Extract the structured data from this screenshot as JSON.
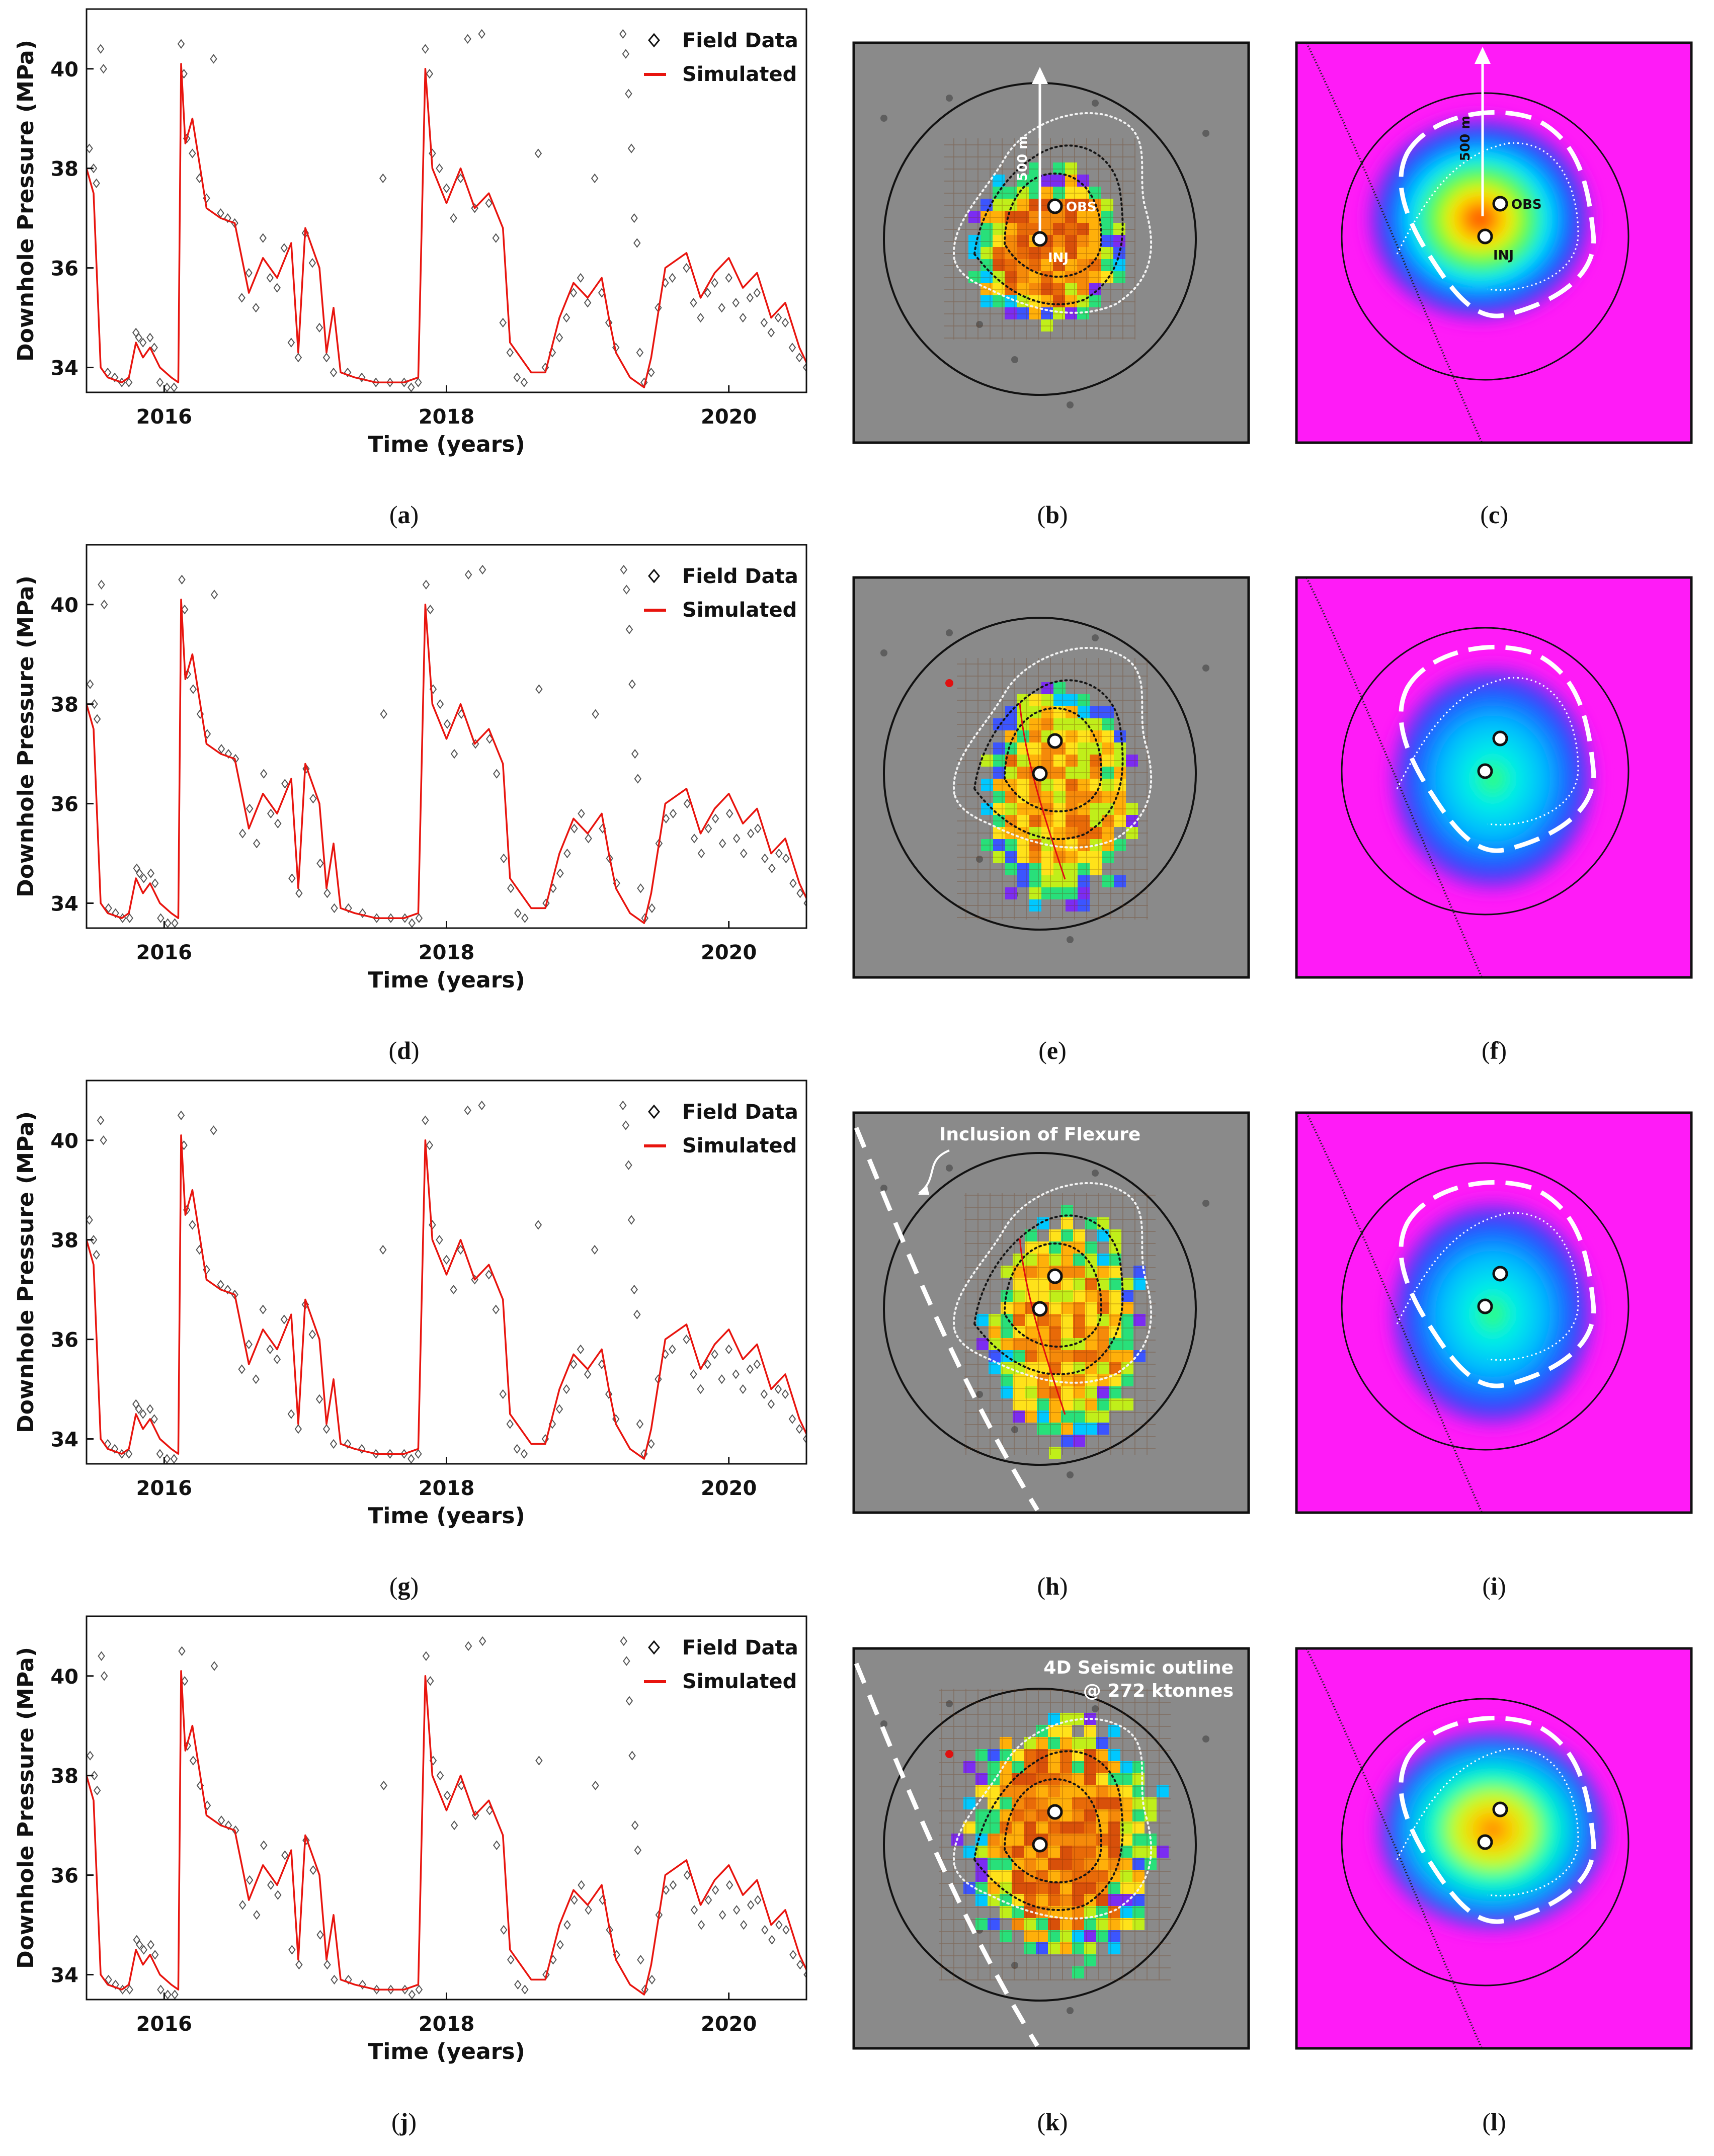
{
  "colors": {
    "sim": "#e8140e",
    "field": "#555555",
    "axis": "#111111",
    "map_bg": "#858585",
    "plume_bg": "#ff1bf7",
    "dotted_white": "#f2f2f2",
    "dotted_black": "#151515",
    "outline_dash": "#ffffff"
  },
  "legend": {
    "field": "Field Data",
    "sim": "Simulated"
  },
  "chart_data": {
    "type": "line",
    "panels": [
      "a",
      "d",
      "g",
      "j"
    ],
    "xlabel": "Time (years)",
    "ylabel": "Downhole Pressure (MPa)",
    "xlim": [
      2015.45,
      2020.55
    ],
    "ylim": [
      33.5,
      41.2
    ],
    "xticks": [
      2016,
      2018,
      2020
    ],
    "xtick_labels": [
      "2016",
      "2018",
      "2020"
    ],
    "yticks": [
      34,
      36,
      38,
      40
    ],
    "ytick_labels": [
      "34",
      "36",
      "38",
      "40"
    ],
    "series": [
      {
        "name": "Simulated",
        "style": "line",
        "points": [
          [
            2015.45,
            38.0
          ],
          [
            2015.5,
            37.5
          ],
          [
            2015.55,
            34.0
          ],
          [
            2015.6,
            33.8
          ],
          [
            2015.7,
            33.7
          ],
          [
            2015.75,
            33.8
          ],
          [
            2015.8,
            34.5
          ],
          [
            2015.85,
            34.2
          ],
          [
            2015.9,
            34.4
          ],
          [
            2015.97,
            34.0
          ],
          [
            2016.05,
            33.8
          ],
          [
            2016.1,
            33.7
          ],
          [
            2016.12,
            40.1
          ],
          [
            2016.15,
            38.5
          ],
          [
            2016.2,
            39.0
          ],
          [
            2016.3,
            37.2
          ],
          [
            2016.4,
            37.0
          ],
          [
            2016.5,
            36.9
          ],
          [
            2016.6,
            35.5
          ],
          [
            2016.7,
            36.2
          ],
          [
            2016.8,
            35.8
          ],
          [
            2016.9,
            36.5
          ],
          [
            2016.95,
            34.3
          ],
          [
            2017.0,
            36.8
          ],
          [
            2017.1,
            36.0
          ],
          [
            2017.15,
            34.3
          ],
          [
            2017.2,
            35.2
          ],
          [
            2017.25,
            33.9
          ],
          [
            2017.35,
            33.8
          ],
          [
            2017.5,
            33.7
          ],
          [
            2017.6,
            33.7
          ],
          [
            2017.7,
            33.7
          ],
          [
            2017.8,
            33.8
          ],
          [
            2017.85,
            40.0
          ],
          [
            2017.9,
            38.0
          ],
          [
            2018.0,
            37.3
          ],
          [
            2018.1,
            38.0
          ],
          [
            2018.2,
            37.2
          ],
          [
            2018.3,
            37.5
          ],
          [
            2018.4,
            36.8
          ],
          [
            2018.45,
            34.5
          ],
          [
            2018.5,
            34.3
          ],
          [
            2018.6,
            33.9
          ],
          [
            2018.7,
            33.9
          ],
          [
            2018.8,
            35.0
          ],
          [
            2018.9,
            35.7
          ],
          [
            2019.0,
            35.4
          ],
          [
            2019.1,
            35.8
          ],
          [
            2019.15,
            35.0
          ],
          [
            2019.2,
            34.3
          ],
          [
            2019.3,
            33.8
          ],
          [
            2019.4,
            33.6
          ],
          [
            2019.45,
            34.2
          ],
          [
            2019.55,
            36.0
          ],
          [
            2019.7,
            36.3
          ],
          [
            2019.8,
            35.4
          ],
          [
            2019.9,
            35.9
          ],
          [
            2020.0,
            36.2
          ],
          [
            2020.1,
            35.6
          ],
          [
            2020.2,
            35.9
          ],
          [
            2020.3,
            35.0
          ],
          [
            2020.4,
            35.3
          ],
          [
            2020.5,
            34.4
          ],
          [
            2020.55,
            34.1
          ]
        ]
      },
      {
        "name": "Field Data",
        "style": "marker",
        "points": [
          [
            2015.47,
            38.4
          ],
          [
            2015.5,
            38.0
          ],
          [
            2015.52,
            37.7
          ],
          [
            2015.55,
            40.4
          ],
          [
            2015.57,
            40.0
          ],
          [
            2015.6,
            33.9
          ],
          [
            2015.65,
            33.8
          ],
          [
            2015.7,
            33.7
          ],
          [
            2015.75,
            33.7
          ],
          [
            2015.8,
            34.7
          ],
          [
            2015.82,
            34.6
          ],
          [
            2015.85,
            34.5
          ],
          [
            2015.9,
            34.6
          ],
          [
            2015.93,
            34.4
          ],
          [
            2015.97,
            33.7
          ],
          [
            2016.02,
            33.6
          ],
          [
            2016.07,
            33.6
          ],
          [
            2016.12,
            40.5
          ],
          [
            2016.14,
            39.9
          ],
          [
            2016.16,
            38.6
          ],
          [
            2016.2,
            38.3
          ],
          [
            2016.25,
            37.8
          ],
          [
            2016.3,
            37.4
          ],
          [
            2016.35,
            40.2
          ],
          [
            2016.4,
            37.1
          ],
          [
            2016.45,
            37.0
          ],
          [
            2016.5,
            36.9
          ],
          [
            2016.55,
            35.4
          ],
          [
            2016.6,
            35.9
          ],
          [
            2016.65,
            35.2
          ],
          [
            2016.7,
            36.6
          ],
          [
            2016.75,
            35.8
          ],
          [
            2016.8,
            35.6
          ],
          [
            2016.85,
            36.4
          ],
          [
            2016.9,
            34.5
          ],
          [
            2016.95,
            34.2
          ],
          [
            2017.0,
            36.7
          ],
          [
            2017.05,
            36.1
          ],
          [
            2017.1,
            34.8
          ],
          [
            2017.15,
            34.2
          ],
          [
            2017.2,
            33.9
          ],
          [
            2017.3,
            33.9
          ],
          [
            2017.4,
            33.8
          ],
          [
            2017.5,
            33.7
          ],
          [
            2017.55,
            37.8
          ],
          [
            2017.6,
            33.7
          ],
          [
            2017.7,
            33.7
          ],
          [
            2017.75,
            33.6
          ],
          [
            2017.8,
            33.7
          ],
          [
            2017.85,
            40.4
          ],
          [
            2017.88,
            39.9
          ],
          [
            2017.9,
            38.3
          ],
          [
            2017.95,
            38.0
          ],
          [
            2018.0,
            37.6
          ],
          [
            2018.05,
            37.0
          ],
          [
            2018.1,
            37.8
          ],
          [
            2018.15,
            40.6
          ],
          [
            2018.2,
            37.2
          ],
          [
            2018.25,
            40.7
          ],
          [
            2018.3,
            37.3
          ],
          [
            2018.35,
            36.6
          ],
          [
            2018.4,
            34.9
          ],
          [
            2018.45,
            34.3
          ],
          [
            2018.5,
            33.8
          ],
          [
            2018.55,
            33.7
          ],
          [
            2018.65,
            38.3
          ],
          [
            2018.7,
            34.0
          ],
          [
            2018.75,
            34.3
          ],
          [
            2018.8,
            34.6
          ],
          [
            2018.85,
            35.0
          ],
          [
            2018.9,
            35.5
          ],
          [
            2018.95,
            35.8
          ],
          [
            2019.0,
            35.3
          ],
          [
            2019.05,
            37.8
          ],
          [
            2019.1,
            35.5
          ],
          [
            2019.15,
            34.9
          ],
          [
            2019.2,
            34.4
          ],
          [
            2019.25,
            40.7
          ],
          [
            2019.27,
            40.3
          ],
          [
            2019.29,
            39.5
          ],
          [
            2019.31,
            38.4
          ],
          [
            2019.33,
            37.0
          ],
          [
            2019.35,
            36.5
          ],
          [
            2019.37,
            34.3
          ],
          [
            2019.4,
            33.7
          ],
          [
            2019.45,
            33.9
          ],
          [
            2019.5,
            35.2
          ],
          [
            2019.55,
            35.7
          ],
          [
            2019.6,
            35.8
          ],
          [
            2019.7,
            36.0
          ],
          [
            2019.75,
            35.3
          ],
          [
            2019.8,
            35.0
          ],
          [
            2019.85,
            35.5
          ],
          [
            2019.9,
            35.7
          ],
          [
            2019.95,
            35.2
          ],
          [
            2020.0,
            35.8
          ],
          [
            2020.05,
            35.3
          ],
          [
            2020.1,
            35.0
          ],
          [
            2020.15,
            35.4
          ],
          [
            2020.2,
            35.5
          ],
          [
            2020.25,
            34.9
          ],
          [
            2020.3,
            34.7
          ],
          [
            2020.35,
            35.0
          ],
          [
            2020.4,
            34.9
          ],
          [
            2020.45,
            34.4
          ],
          [
            2020.5,
            34.2
          ],
          [
            2020.55,
            34.0
          ]
        ]
      }
    ]
  },
  "maps": {
    "scale_label": "500 m",
    "obs_label": "OBS",
    "inj_label": "INJ",
    "flexure_label": "Inclusion of Flexure",
    "seismic_label_1": "4D Seismic outline",
    "seismic_label_2": "@ 272 ktonnes"
  },
  "captions": [
    "(a)",
    "(b)",
    "(c)",
    "(d)",
    "(e)",
    "(f)",
    "(g)",
    "(h)",
    "(i)",
    "(j)",
    "(k)",
    "(l)"
  ]
}
